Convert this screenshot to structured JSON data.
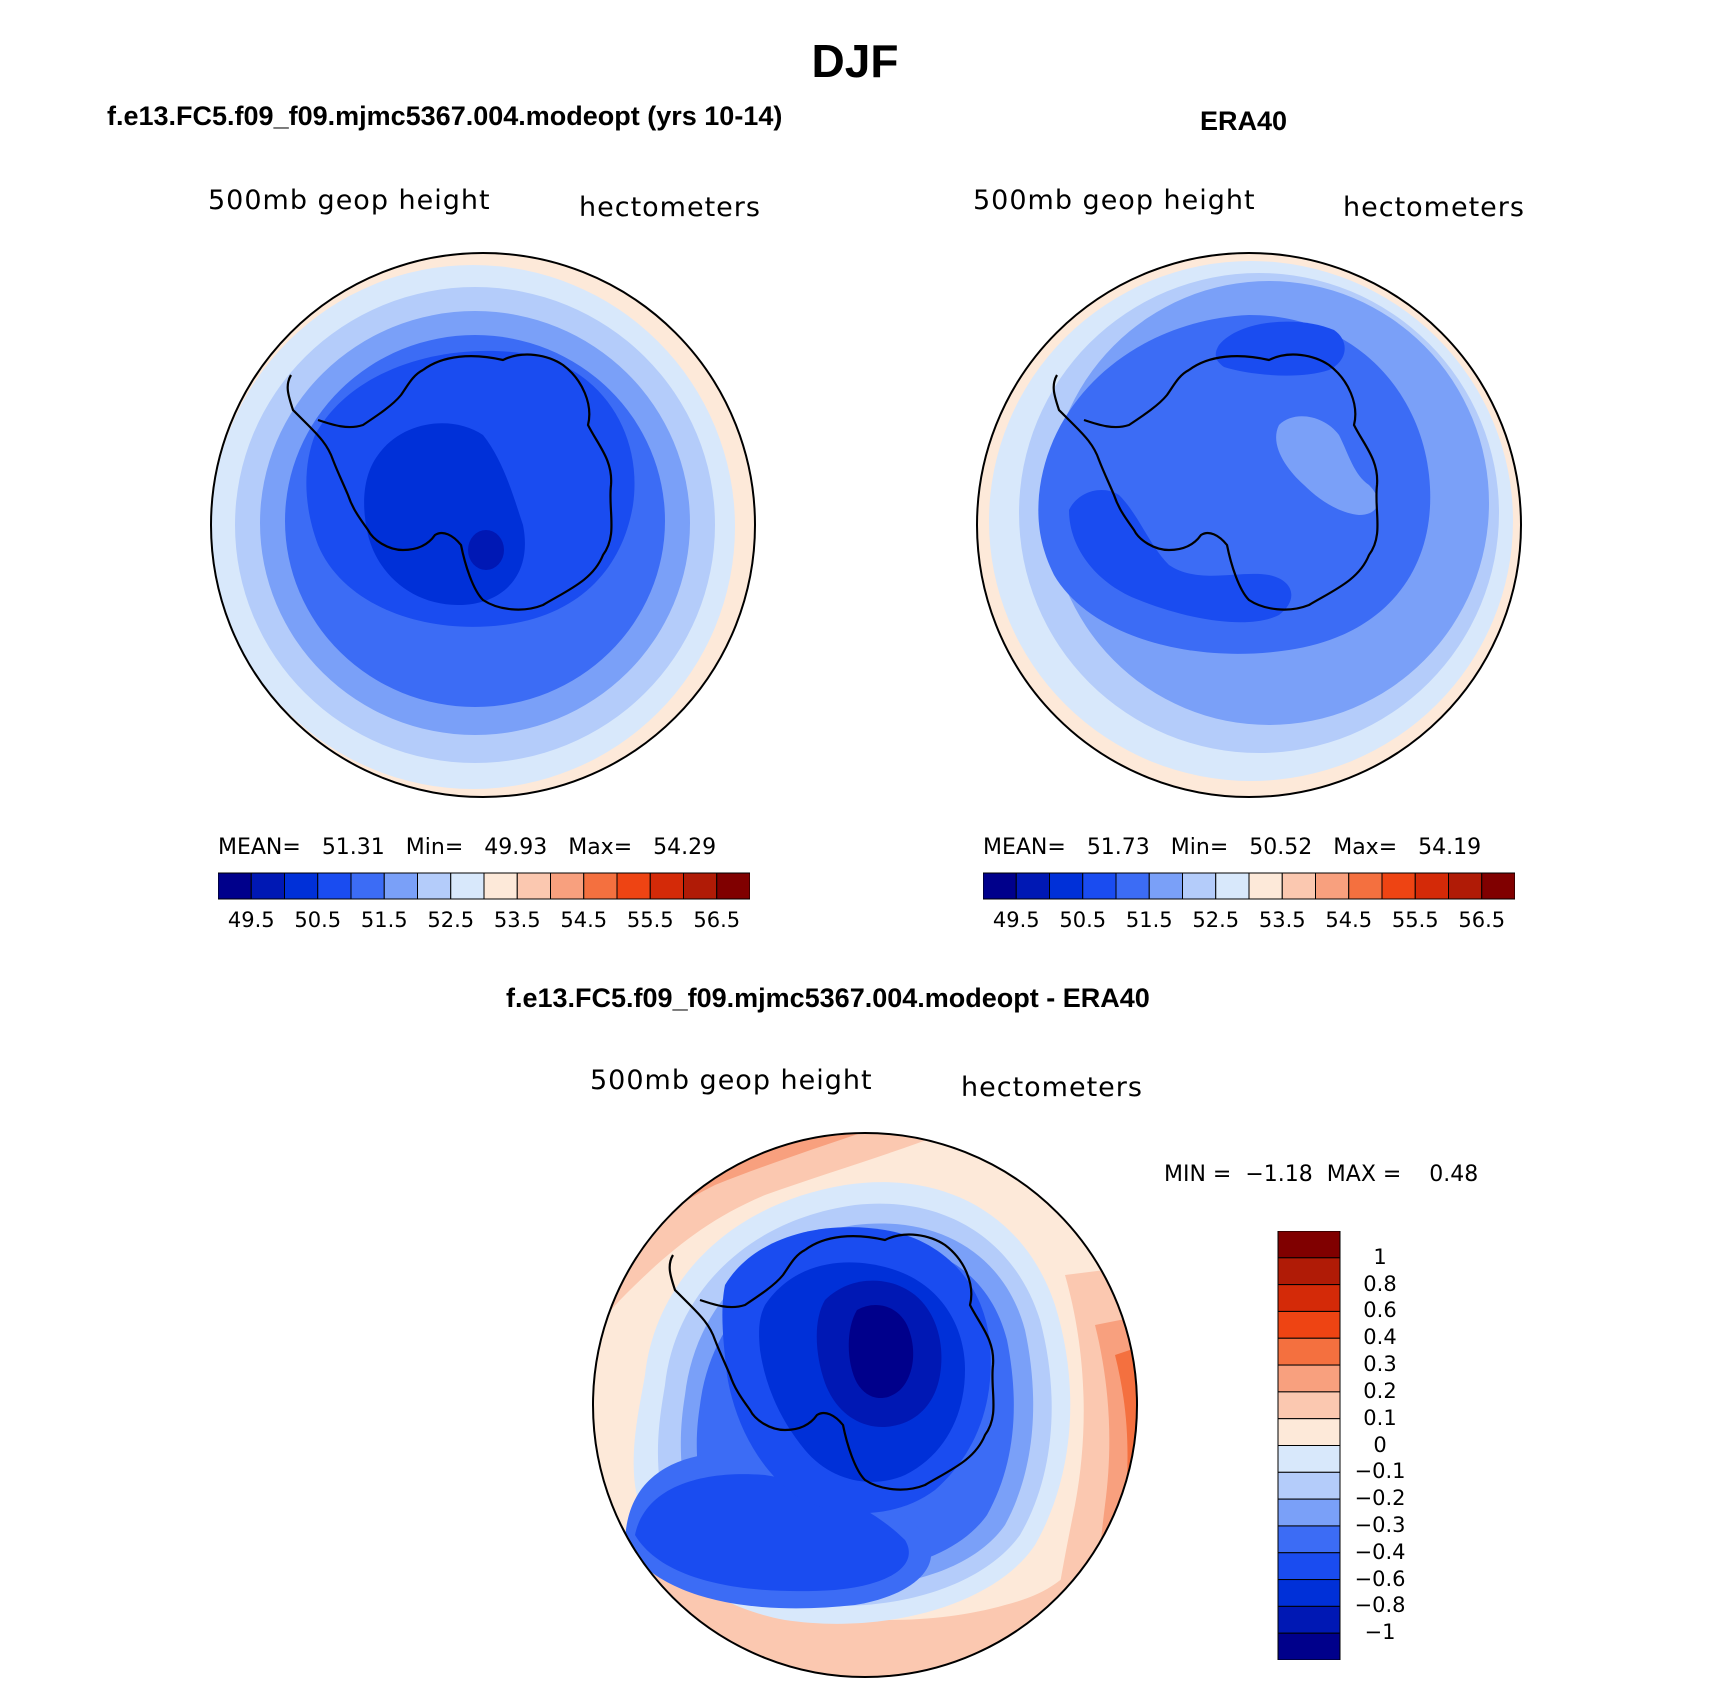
{
  "figure": {
    "title": "DJF"
  },
  "panels": {
    "model": {
      "title": "f.e13.FC5.f09_f09.mjmc5367.004.modeopt (yrs 10-14)",
      "left_label": "500mb geop height",
      "right_label": "hectometers",
      "stats": {
        "mean_label": "MEAN=",
        "mean": "51.31",
        "min_label": "Min=",
        "min": "49.93",
        "max_label": "Max=",
        "max": "54.29"
      }
    },
    "obs": {
      "title": "ERA40",
      "left_label": "500mb geop height",
      "right_label": "hectometers",
      "stats": {
        "mean_label": "MEAN=",
        "mean": "51.73",
        "min_label": "Min=",
        "min": "50.52",
        "max_label": "Max=",
        "max": "54.19"
      }
    },
    "diff": {
      "title": "f.e13.FC5.f09_f09.mjmc5367.004.modeopt - ERA40",
      "left_label": "500mb geop height",
      "right_label": "hectometers",
      "stats": {
        "min_label": "MIN =",
        "min": "−1.18",
        "max_label": "MAX =",
        "max": "0.48"
      }
    }
  },
  "colorbars": {
    "absolute": {
      "colors": [
        "#00008b",
        "#0018b4",
        "#0030d8",
        "#1a4cf0",
        "#3c6cf5",
        "#7aa0f8",
        "#b4ccfa",
        "#d8e8fb",
        "#fde9d9",
        "#fbc8b0",
        "#f8a07e",
        "#f4703f",
        "#ee4413",
        "#d42a08",
        "#b01b06",
        "#800000"
      ],
      "labels": [
        "49.5",
        "50.5",
        "51.5",
        "52.5",
        "53.5",
        "54.5",
        "55.5",
        "56.5"
      ]
    },
    "difference": {
      "colors": [
        "#00008b",
        "#0018b4",
        "#0030d8",
        "#1a4cf0",
        "#3c6cf5",
        "#7aa0f8",
        "#b4ccfa",
        "#d8e8fb",
        "#fde9d9",
        "#fbc8b0",
        "#f8a07e",
        "#f4703f",
        "#ee4413",
        "#d42a08",
        "#b01b06",
        "#800000"
      ],
      "labels": [
        "1",
        "0.8",
        "0.6",
        "0.4",
        "0.3",
        "0.2",
        "0.1",
        "0",
        "−0.1",
        "−0.2",
        "−0.3",
        "−0.4",
        "−0.6",
        "−0.8",
        "−1"
      ]
    }
  }
}
